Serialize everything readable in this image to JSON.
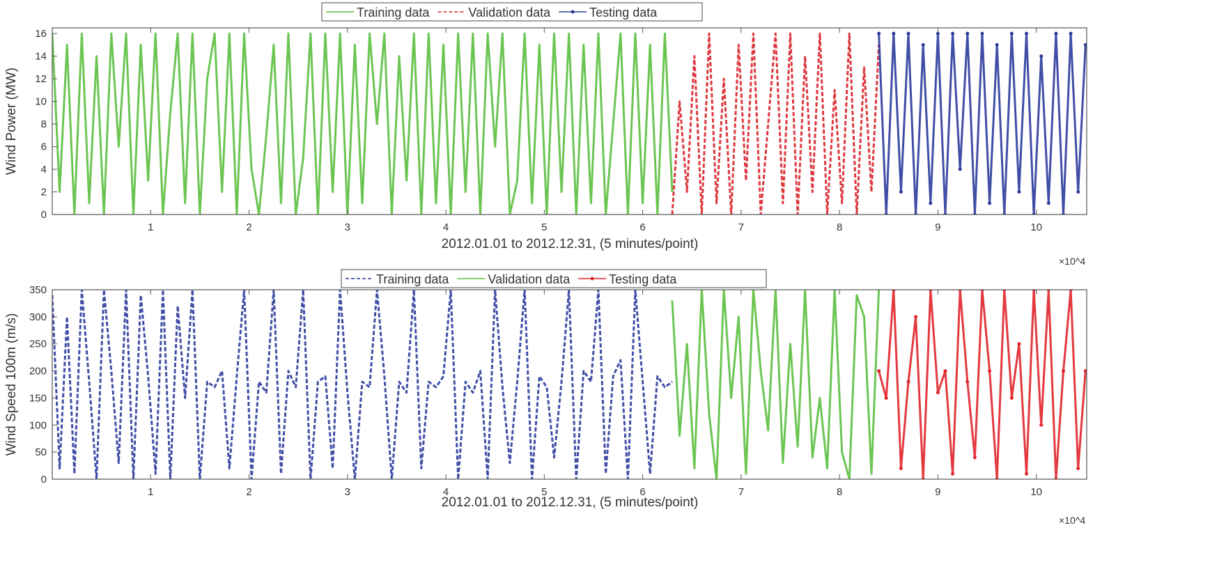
{
  "chart_data": [
    {
      "type": "line",
      "ylabel": "Wind Power (MW)",
      "xlabel": "2012.01.01 to 2012.12.31, (5 minutes/point)",
      "x_exponent": "×10^4",
      "xlim": [
        0,
        105120
      ],
      "ylim": [
        0,
        16.5
      ],
      "xticks": [
        1,
        2,
        3,
        4,
        5,
        6,
        7,
        8,
        9,
        10
      ],
      "yticks": [
        0,
        2,
        4,
        6,
        8,
        10,
        12,
        14,
        16
      ],
      "grid": false,
      "legend": "top-center",
      "series": [
        {
          "name": "Training data",
          "color": "#5cbf3f",
          "style": "solid",
          "x_start": 0,
          "x_step": 750,
          "values": [
            16,
            2,
            15,
            0,
            16,
            1,
            14,
            0,
            16,
            6,
            16,
            0,
            15,
            3,
            16,
            0,
            9,
            16,
            1,
            16,
            0,
            12,
            16,
            2,
            16,
            0,
            16,
            4,
            0,
            7,
            15,
            1,
            16,
            0,
            5,
            16,
            0,
            16,
            2,
            16,
            0,
            15,
            1,
            16,
            8,
            16,
            0,
            14,
            3,
            16,
            0,
            16,
            1,
            15,
            0,
            16,
            2,
            16,
            0,
            16,
            6,
            16,
            0,
            3,
            16,
            1,
            15,
            0,
            16,
            2,
            16,
            0,
            15,
            1,
            16,
            0,
            8,
            16,
            0,
            16,
            1,
            15,
            0,
            16,
            2
          ]
        },
        {
          "name": "Validation data",
          "color": "#d9232a",
          "style": "dashed",
          "x_start": 63000,
          "x_step": 750,
          "values": [
            0,
            10,
            2,
            14,
            0,
            16,
            1,
            12,
            0,
            15,
            3,
            16,
            0,
            8,
            16,
            1,
            16,
            0,
            14,
            2,
            16,
            0,
            11,
            1,
            16,
            0,
            13,
            2,
            15
          ]
        },
        {
          "name": "Testing data",
          "color": "#2b3b9c",
          "style": "dotted-marker",
          "x_start": 84000,
          "x_step": 750,
          "values": [
            16,
            0,
            16,
            2,
            16,
            0,
            15,
            1,
            16,
            0,
            16,
            4,
            16,
            0,
            16,
            1,
            15,
            0,
            16,
            2,
            16,
            0,
            14,
            1,
            16,
            0,
            16,
            2,
            15
          ]
        }
      ]
    },
    {
      "type": "line",
      "ylabel": "Wind Speed 100m (m/s)",
      "xlabel": "2012.01.01 to 2012.12.31, (5 minutes/point)",
      "x_exponent": "×10^4",
      "xlim": [
        0,
        105120
      ],
      "ylim": [
        0,
        350
      ],
      "xticks": [
        1,
        2,
        3,
        4,
        5,
        6,
        7,
        8,
        9,
        10
      ],
      "yticks": [
        0,
        50,
        100,
        150,
        200,
        250,
        300,
        350
      ],
      "grid": false,
      "legend": "top-center",
      "series": [
        {
          "name": "Training data",
          "color": "#2b3b9c",
          "style": "dashed",
          "x_start": 0,
          "x_step": 750,
          "values": [
            340,
            20,
            300,
            10,
            350,
            180,
            0,
            350,
            200,
            30,
            350,
            0,
            340,
            190,
            10,
            350,
            0,
            320,
            150,
            350,
            0,
            180,
            170,
            200,
            20,
            190,
            350,
            0,
            180,
            160,
            350,
            10,
            200,
            170,
            350,
            0,
            180,
            190,
            20,
            350,
            160,
            0,
            180,
            170,
            350,
            190,
            0,
            180,
            160,
            350,
            20,
            180,
            170,
            190,
            350,
            0,
            180,
            160,
            200,
            0,
            350,
            170,
            30,
            180,
            350,
            0,
            190,
            170,
            40,
            180,
            350,
            0,
            200,
            180,
            350,
            10,
            190,
            220,
            0,
            350,
            180,
            10,
            190,
            170,
            180
          ]
        },
        {
          "name": "Validation data",
          "color": "#5cbf3f",
          "style": "solid",
          "x_start": 63000,
          "x_step": 750,
          "values": [
            330,
            80,
            250,
            20,
            350,
            120,
            0,
            350,
            150,
            300,
            10,
            350,
            200,
            90,
            350,
            30,
            250,
            60,
            350,
            40,
            150,
            20,
            350,
            50,
            0,
            340,
            300,
            10,
            350
          ]
        },
        {
          "name": "Testing data",
          "color": "#e0242a",
          "style": "dotted-marker",
          "x_start": 84000,
          "x_step": 750,
          "values": [
            200,
            150,
            350,
            20,
            180,
            300,
            0,
            350,
            160,
            200,
            10,
            350,
            180,
            40,
            350,
            200,
            0,
            350,
            150,
            250,
            10,
            350,
            100,
            350,
            0,
            200,
            350,
            20,
            200
          ]
        }
      ]
    }
  ]
}
